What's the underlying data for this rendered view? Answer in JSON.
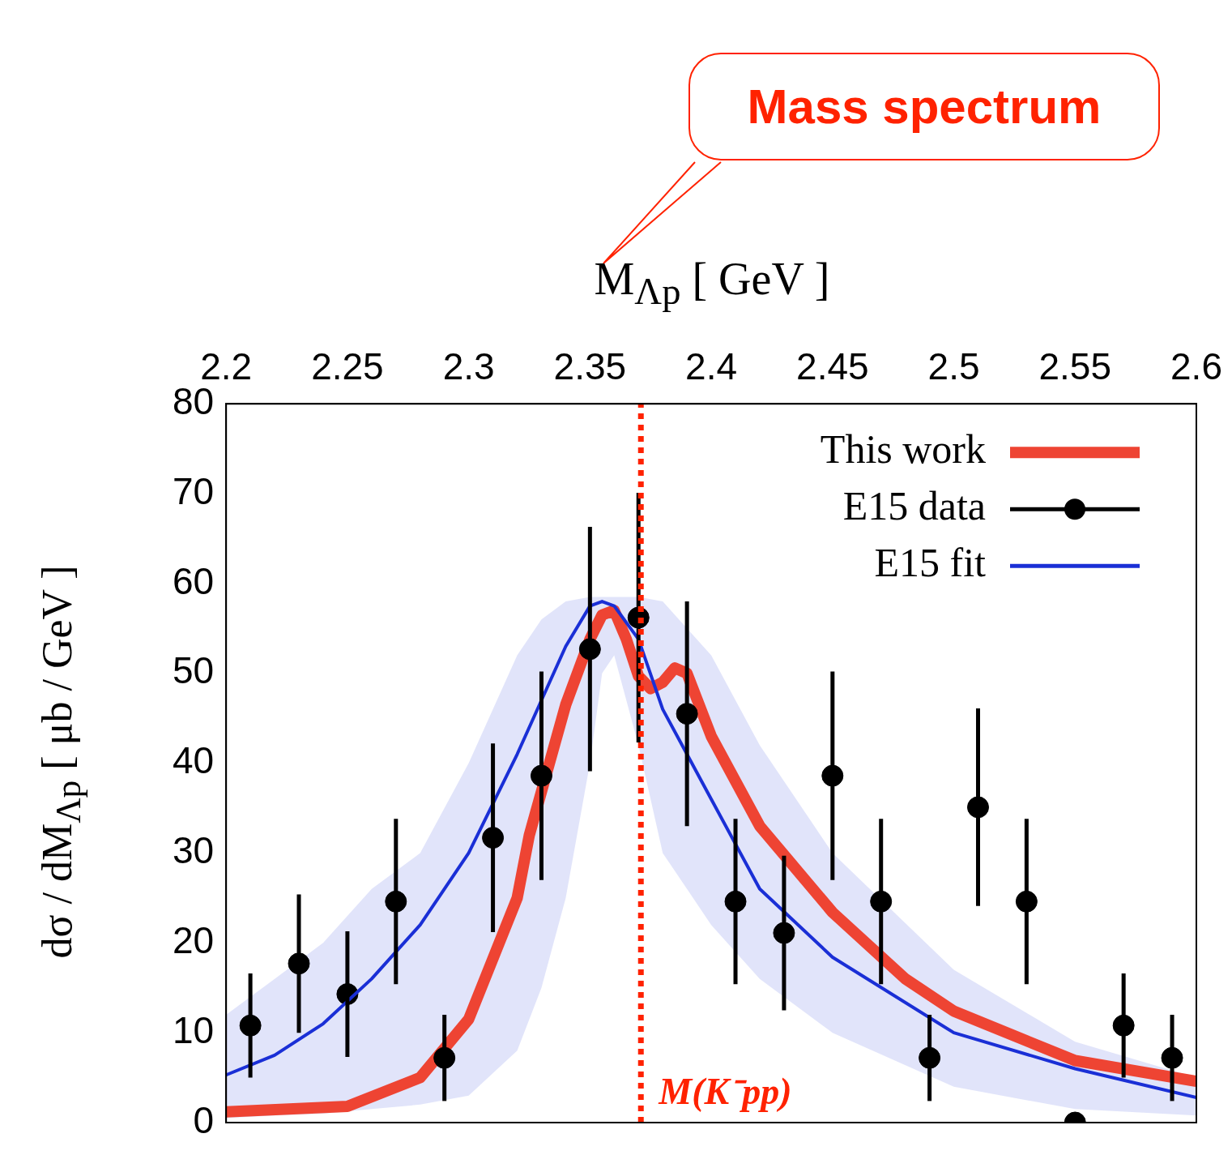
{
  "chart_data": {
    "type": "line",
    "xlabel": "M$_{Λp}$ [ GeV ]",
    "ylabel": "dσ / dM$_{Λp}$ [ μb / GeV ]",
    "xlim": [
      2.2,
      2.6
    ],
    "xticks": [
      2.2,
      2.25,
      2.3,
      2.35,
      2.4,
      2.45,
      2.5,
      2.55,
      2.6
    ],
    "ylim": [
      0,
      80
    ],
    "yticks": [
      0,
      10,
      20,
      30,
      40,
      50,
      60,
      70,
      80
    ],
    "legend": "top right",
    "grid": false,
    "annotations": [
      "Mass spectrum"
    ],
    "ref_lines": [
      {
        "axis": "x",
        "value": 2.371,
        "label": "M(K⁻pp)",
        "color": "#ff2200",
        "line_style": "dotted"
      }
    ],
    "series": [
      {
        "name": "This work",
        "type": "line",
        "color": "#ee4433",
        "x": [
          2.2,
          2.25,
          2.28,
          2.3,
          2.32,
          2.325,
          2.34,
          2.35,
          2.355,
          2.36,
          2.365,
          2.37,
          2.375,
          2.38,
          2.385,
          2.39,
          2.4,
          2.42,
          2.45,
          2.48,
          2.5,
          2.55,
          2.6
        ],
        "values": [
          1.2,
          1.8,
          5,
          11.5,
          25,
          32,
          46.5,
          53.8,
          56.5,
          57,
          53.8,
          49.7,
          48.3,
          49,
          50.6,
          50,
          43,
          33,
          23.4,
          16,
          12.4,
          6.9,
          4.6
        ]
      },
      {
        "name": "E15 data",
        "type": "scatter",
        "color": "#000000",
        "marker": "circle",
        "x": [
          2.21,
          2.23,
          2.25,
          2.27,
          2.29,
          2.31,
          2.33,
          2.35,
          2.37,
          2.39,
          2.41,
          2.43,
          2.45,
          2.47,
          2.49,
          2.51,
          2.53,
          2.55,
          2.57,
          2.59
        ],
        "values": [
          10.8,
          17.7,
          14.3,
          24.6,
          7.2,
          31.7,
          38.6,
          52.7,
          56.2,
          45.5,
          24.6,
          21.1,
          38.6,
          24.6,
          7.2,
          35.1,
          24.6,
          0,
          10.8,
          7.2
        ],
        "errors": [
          5.8,
          7.7,
          7,
          9.2,
          4.8,
          10.5,
          11.6,
          13.6,
          13.9,
          12.5,
          9.2,
          8.6,
          11.6,
          9.2,
          4.8,
          11,
          9.2,
          null,
          5.8,
          4.8
        ]
      },
      {
        "name": "E15 fit",
        "type": "line",
        "color": "#1a2fd6",
        "x": [
          2.2,
          2.22,
          2.24,
          2.26,
          2.28,
          2.3,
          2.32,
          2.33,
          2.34,
          2.35,
          2.355,
          2.36,
          2.37,
          2.38,
          2.39,
          2.4,
          2.42,
          2.45,
          2.5,
          2.55,
          2.6
        ],
        "values": [
          5.3,
          7.5,
          11,
          16,
          22,
          30,
          41,
          47,
          53,
          57.5,
          58,
          57.5,
          53.8,
          46,
          41,
          36,
          26,
          18.4,
          10,
          6,
          2.8
        ],
        "lower": [
          0.5,
          0.8,
          1,
          1.5,
          2,
          3,
          8,
          15,
          25,
          40,
          50,
          52,
          42,
          30,
          26,
          22,
          16,
          10,
          4,
          1.5,
          0.8
        ],
        "upper": [
          12,
          16,
          20,
          26,
          30,
          40,
          52,
          56,
          58,
          58.5,
          58.5,
          58.5,
          58.5,
          58,
          55,
          52,
          42,
          30,
          17,
          9,
          5
        ]
      }
    ]
  }
}
